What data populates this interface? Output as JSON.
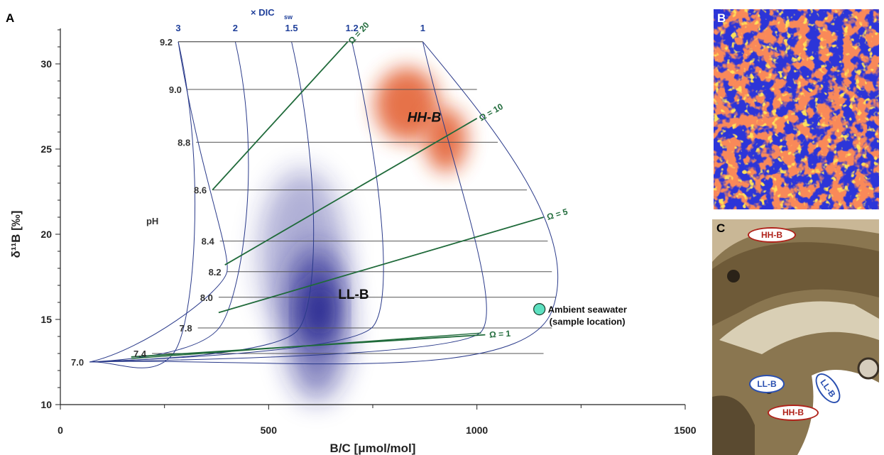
{
  "panel_labels": {
    "a": "A",
    "b": "B",
    "c": "C"
  },
  "chart_data": {
    "type": "scatter",
    "xlabel": "B/C [μmol/mol]",
    "ylabel": "δ¹¹B [‰]",
    "xlim": [
      0,
      1500
    ],
    "ylim": [
      10,
      32
    ],
    "xticks": [
      "0",
      "500",
      "1000",
      "1500"
    ],
    "yticks": [
      "10",
      "15",
      "20",
      "25",
      "30"
    ],
    "grid": false,
    "ph_axis_label": "pH",
    "ph_levels": [
      {
        "label": "9.2",
        "y": 31.3,
        "x_start": 283,
        "x_end": 870
      },
      {
        "label": "9.0",
        "y": 28.5,
        "x_start": 305,
        "x_end": 1000
      },
      {
        "label": "8.8",
        "y": 25.4,
        "x_start": 326,
        "x_end": 1050
      },
      {
        "label": "8.6",
        "y": 22.6,
        "x_start": 365,
        "x_end": 1120
      },
      {
        "label": "8.4",
        "y": 19.6,
        "x_start": 383,
        "x_end": 1170
      },
      {
        "label": "8.2",
        "y": 17.8,
        "x_start": 400,
        "x_end": 1180
      },
      {
        "label": "8.0",
        "y": 16.3,
        "x_start": 380,
        "x_end": 1190
      },
      {
        "label": "7.8",
        "y": 14.5,
        "x_start": 330,
        "x_end": 1180
      },
      {
        "label": "7.4",
        "y": 13.0,
        "x_start": 220,
        "x_end": 1160
      },
      {
        "label": "7.0",
        "y": 12.5,
        "x_start": 70,
        "x_end": 70
      }
    ],
    "dic_axis_label": "× DIC",
    "dic_axis_subscript": "sw",
    "dic_lines": [
      {
        "label": "3",
        "x_top": 283
      },
      {
        "label": "2",
        "x_top": 420
      },
      {
        "label": "1.5",
        "x_top": 555
      },
      {
        "label": "1.2",
        "x_top": 700
      },
      {
        "label": "1",
        "x_top": 870
      }
    ],
    "omega_lines": [
      {
        "label": "Ω = 20",
        "x1": 365,
        "y1": 22.6,
        "x2": 690,
        "y2": 31.3
      },
      {
        "label": "Ω = 10",
        "x1": 395,
        "y1": 18.2,
        "x2": 1000,
        "y2": 26.8
      },
      {
        "label": "Ω = 5",
        "x1": 380,
        "y1": 15.4,
        "x2": 1160,
        "y2": 21.0
      },
      {
        "label": "Ω = 1",
        "x1": 170,
        "y1": 12.8,
        "x2": 1020,
        "y2": 14.1
      }
    ],
    "clusters": [
      {
        "name": "HH-B",
        "color": "#e0501a",
        "x_center": 900,
        "y_center": 27.2
      },
      {
        "name": "LL-B",
        "color": "#1a1a8a",
        "x_center": 615,
        "y_center": 16.5
      }
    ],
    "points": [
      {
        "name": "Ambient seawater",
        "name2": "(sample location)",
        "x": 1150,
        "y": 15.6,
        "color": "#5de0c0"
      }
    ]
  },
  "micrograph_tags": {
    "hhb_top": "HH-B",
    "llb_left": "LL-B",
    "llb_right": "LL-B",
    "hhb_bottom": "HH-B"
  },
  "colors": {
    "grid_curves": "#2a3a8a",
    "omega": "#1f6a3a",
    "axis_text": "#333333",
    "dic_text": "#1f3f9a"
  }
}
